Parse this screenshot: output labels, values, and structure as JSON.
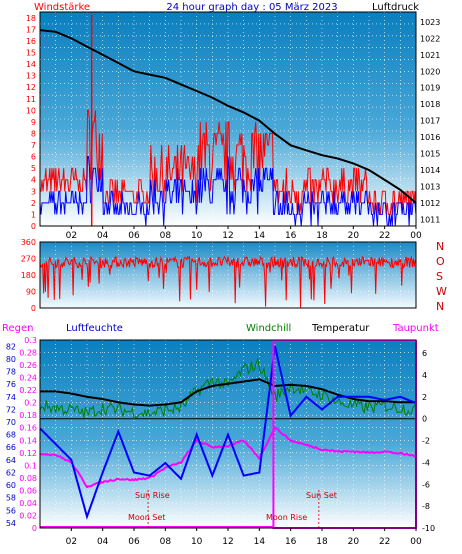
{
  "title": "24 hour graph day : 05 März 2023",
  "colors": {
    "wind": "#ff0000",
    "gust_red": "#ff0000",
    "wind_blue": "#0000ff",
    "pressure": "#000000",
    "direction": "#ff0000",
    "humidity": "#0000ff",
    "windchill": "#008000",
    "temperature": "#000000",
    "dewpoint": "#ff00ff",
    "rain": "#ff00ff",
    "grid": "#ffffff",
    "zero_line": "#000000"
  },
  "chart_data": [
    {
      "type": "line",
      "name": "wind-pressure",
      "left_label": "Windstärke",
      "right_label": "Luftdruck",
      "left_ticks": [
        "0",
        "1",
        "2",
        "3",
        "4",
        "5",
        "6",
        "7",
        "8",
        "9",
        "10",
        "11",
        "12",
        "13",
        "14",
        "15",
        "16",
        "17",
        "18"
      ],
      "right_ticks": [
        "1011",
        "1012",
        "1013",
        "1014",
        "1015",
        "1016",
        "1017",
        "1018",
        "1019",
        "1020",
        "1021",
        "1022",
        "1023"
      ],
      "x_ticks": [
        "02",
        "04",
        "06",
        "08",
        "10",
        "12",
        "14",
        "16",
        "18",
        "20",
        "22",
        "00"
      ],
      "ylim_left": [
        0,
        18.5
      ],
      "ylim_right": [
        1010.6,
        1023.6
      ],
      "xlim": [
        0,
        24
      ],
      "pressure": {
        "x": [
          0,
          1,
          2,
          3,
          4,
          5,
          6,
          7,
          8,
          9,
          10,
          11,
          12,
          13,
          14,
          15,
          16,
          17,
          18,
          19,
          20,
          21,
          22,
          23,
          24
        ],
        "y": [
          1022.5,
          1022.4,
          1022.0,
          1021.5,
          1021.0,
          1020.5,
          1020.0,
          1019.8,
          1019.6,
          1019.2,
          1018.8,
          1018.4,
          1017.9,
          1017.5,
          1017.0,
          1016.2,
          1015.5,
          1015.2,
          1014.9,
          1014.7,
          1014.4,
          1014.0,
          1013.4,
          1012.8,
          1012.0
        ]
      },
      "gust_peak": {
        "x": 3.3,
        "y": 18.3
      }
    },
    {
      "type": "line",
      "name": "wind-direction",
      "left_ticks": [
        "0",
        "90",
        "180",
        "270",
        "360"
      ],
      "right_ticks": [
        "N",
        "W",
        "S",
        "O",
        "N"
      ],
      "ylim": [
        0,
        360
      ]
    },
    {
      "type": "line",
      "name": "rain-humidity-temperature",
      "labels": {
        "rain": "Regen",
        "humidity": "Luftfeuchte",
        "windchill": "Windchill",
        "temperature": "Temperatur",
        "dewpoint": "Taupunkt"
      },
      "humidity_ticks": [
        "54",
        "56",
        "58",
        "60",
        "62",
        "64",
        "66",
        "68",
        "70",
        "72",
        "74",
        "76",
        "78",
        "80",
        "82"
      ],
      "rain_ticks": [
        "0",
        "0.02",
        "0.04",
        "0.06",
        "0.08",
        "0.1",
        "0.12",
        "0.14",
        "0.16",
        "0.18",
        "0.2",
        "0.22",
        "0.24",
        "0.26",
        "0.28",
        "0.3"
      ],
      "temp_ticks": [
        "-10",
        "-8",
        "-6",
        "-4",
        "-2",
        "0",
        "2",
        "4",
        "6"
      ],
      "ylim_temp": [
        -10,
        7.2
      ],
      "ylim_humidity": [
        53.2,
        83.0
      ],
      "annotations": {
        "sunrise": "Sun Rise",
        "sunset": "Sun Set",
        "moonset": "Moon Set",
        "moonrise": "Moon Rise"
      },
      "temperature": {
        "x": [
          0,
          1,
          2,
          3,
          4,
          5,
          6,
          7,
          8,
          9,
          10,
          11,
          12,
          13,
          14,
          15,
          16,
          17,
          18,
          19,
          20,
          21,
          22,
          23,
          24
        ],
        "y": [
          2.5,
          2.5,
          2.3,
          2.0,
          1.8,
          1.5,
          1.3,
          1.2,
          1.3,
          1.5,
          2.5,
          3.0,
          3.2,
          3.4,
          3.6,
          3.0,
          3.1,
          3.0,
          2.7,
          2.2,
          1.8,
          1.6,
          1.6,
          1.5,
          1.5
        ]
      },
      "windchill": {
        "x": [
          0,
          1,
          2,
          3,
          4,
          5,
          6,
          7,
          8,
          9,
          10,
          11,
          12,
          13,
          14,
          15,
          16,
          17,
          18,
          19,
          20,
          21,
          22,
          23,
          24
        ],
        "y": [
          1.2,
          1.0,
          0.8,
          0.5,
          1.0,
          0.8,
          0.6,
          0.5,
          0.8,
          1.0,
          2.5,
          3.5,
          3.0,
          4.5,
          5.0,
          2.0,
          3.0,
          2.5,
          2.2,
          1.5,
          1.2,
          1.0,
          1.2,
          1.0,
          0.8
        ]
      },
      "dewpoint": {
        "x": [
          0,
          1,
          2,
          3,
          4,
          5,
          6,
          7,
          8,
          9,
          10,
          11,
          12,
          13,
          14,
          15,
          16,
          17,
          18,
          19,
          20,
          21,
          22,
          23,
          24
        ],
        "y": [
          -3.2,
          -3.3,
          -4.0,
          -6.2,
          -5.8,
          -5.5,
          -5.6,
          -5.4,
          -4.5,
          -4.0,
          -2.0,
          -2.6,
          -2.5,
          -2.0,
          -3.6,
          -0.8,
          -2.0,
          -2.4,
          -2.8,
          -3.0,
          -3.0,
          -3.1,
          -3.0,
          -3.2,
          -3.4
        ]
      },
      "humidity": {
        "x": [
          0,
          1,
          2,
          3,
          4,
          5,
          6,
          7,
          8,
          9,
          10,
          11,
          12,
          13,
          14,
          15,
          16,
          17,
          18,
          19,
          20,
          21,
          22,
          23,
          24
        ],
        "y": [
          69.0,
          66.5,
          64.0,
          55.0,
          62.0,
          68.5,
          62.0,
          61.5,
          63.5,
          61.0,
          68.0,
          61.5,
          68.0,
          61.5,
          62.0,
          82.0,
          71.0,
          74.0,
          72.0,
          74.0,
          74.0,
          74.0,
          73.5,
          74.0,
          73.0
        ]
      }
    }
  ]
}
